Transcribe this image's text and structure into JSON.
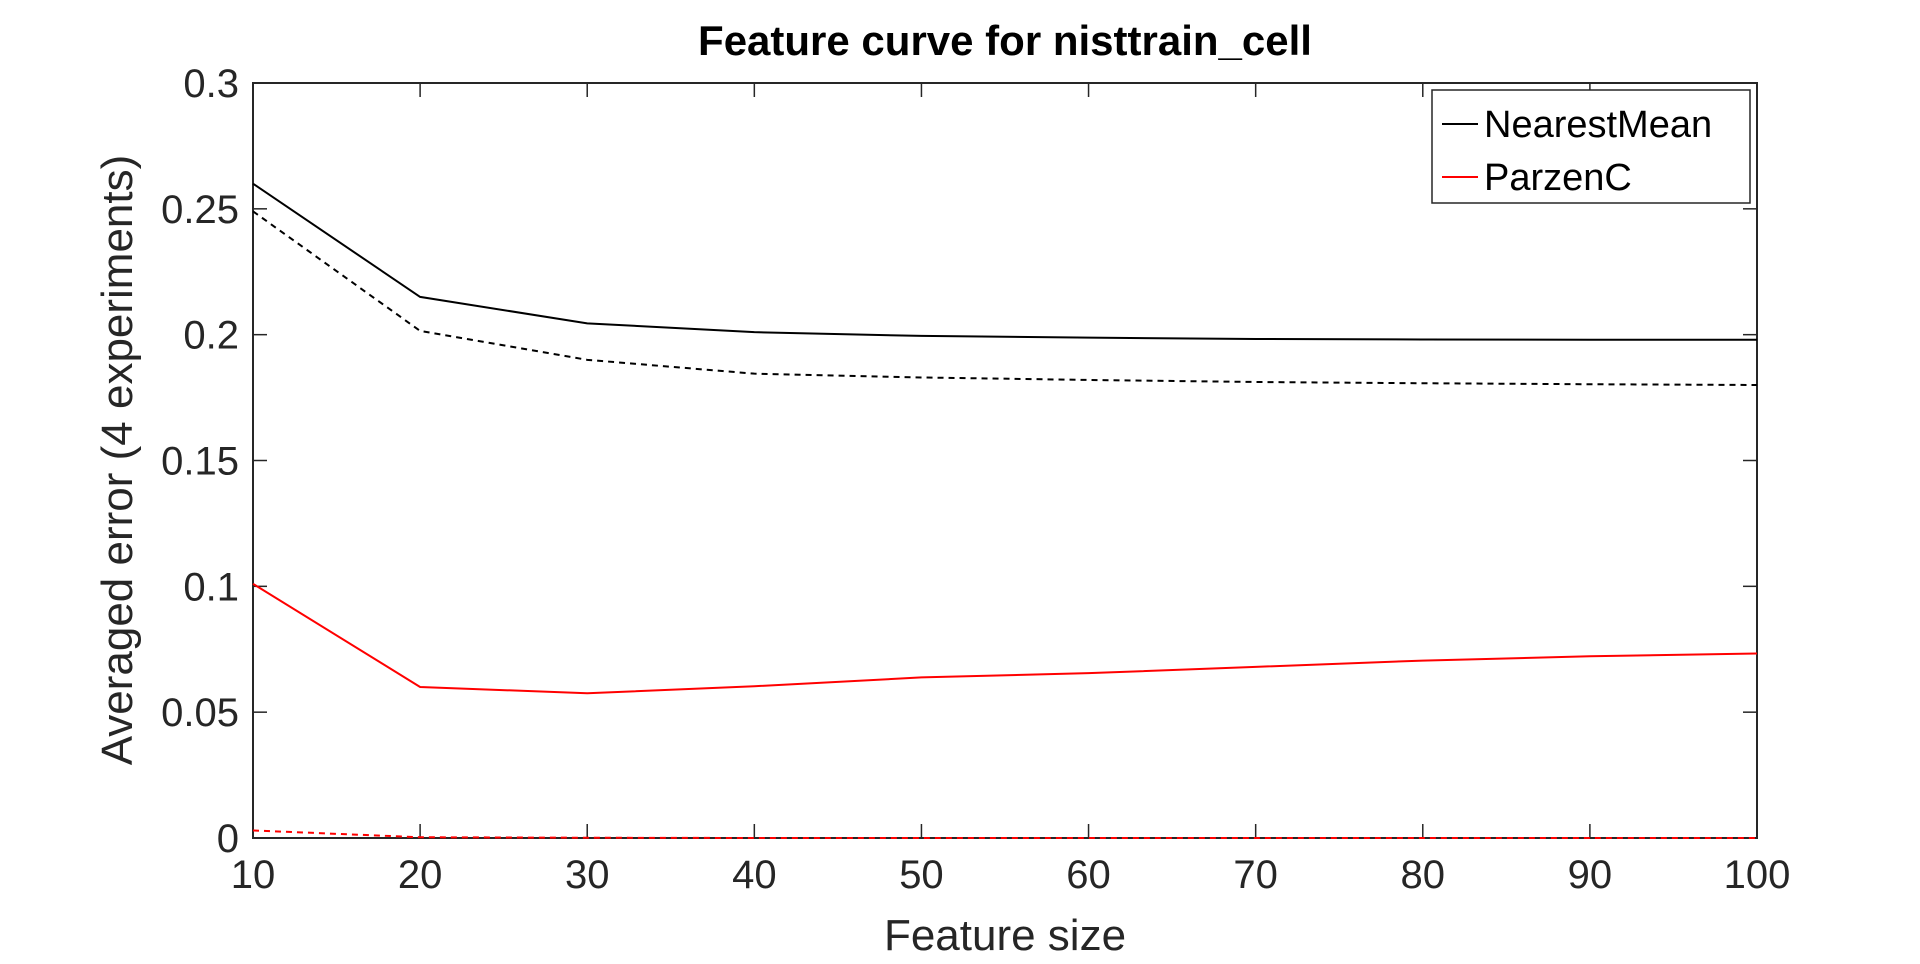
{
  "chart_data": {
    "type": "line",
    "title": "Feature curve for nisttrain_cell",
    "xlabel": "Feature size",
    "ylabel": "Averaged error (4 experiments)",
    "xlim": [
      10,
      100
    ],
    "ylim": [
      0,
      0.3
    ],
    "x_ticks": [
      10,
      20,
      30,
      40,
      50,
      60,
      70,
      80,
      90,
      100
    ],
    "x_tick_labels": [
      "10",
      "20",
      "30",
      "40",
      "50",
      "60",
      "70",
      "80",
      "90",
      "100"
    ],
    "y_ticks": [
      0,
      0.05,
      0.1,
      0.15,
      0.2,
      0.25,
      0.3
    ],
    "y_tick_labels": [
      "0",
      "0.05",
      "0.1",
      "0.15",
      "0.2",
      "0.25",
      "0.3"
    ],
    "x": [
      10,
      20,
      30,
      40,
      50,
      60,
      70,
      80,
      90,
      100
    ],
    "grid": false,
    "legend_position": "top-right",
    "legend": [
      "NearestMean",
      "ParzenC"
    ],
    "series": [
      {
        "name": "NearestMean",
        "style": "solid",
        "color": "#000000",
        "values": [
          0.26,
          0.215,
          0.2045,
          0.201,
          0.1995,
          0.1988,
          0.1983,
          0.1981,
          0.198,
          0.198
        ]
      },
      {
        "style": "dashed",
        "color": "#000000",
        "values": [
          0.249,
          0.2015,
          0.19,
          0.1845,
          0.183,
          0.182,
          0.1812,
          0.1807,
          0.1803,
          0.18
        ]
      },
      {
        "name": "ParzenC",
        "style": "solid",
        "color": "#ff0000",
        "values": [
          0.101,
          0.06,
          0.0575,
          0.0603,
          0.0638,
          0.0655,
          0.068,
          0.0705,
          0.0722,
          0.0733
        ]
      },
      {
        "style": "dashed",
        "color": "#ff0000",
        "values": [
          0.003,
          0.0003,
          0.0001,
          0.0,
          0.0,
          0.0,
          0.0,
          0.0,
          0.0,
          0.0
        ]
      }
    ]
  }
}
